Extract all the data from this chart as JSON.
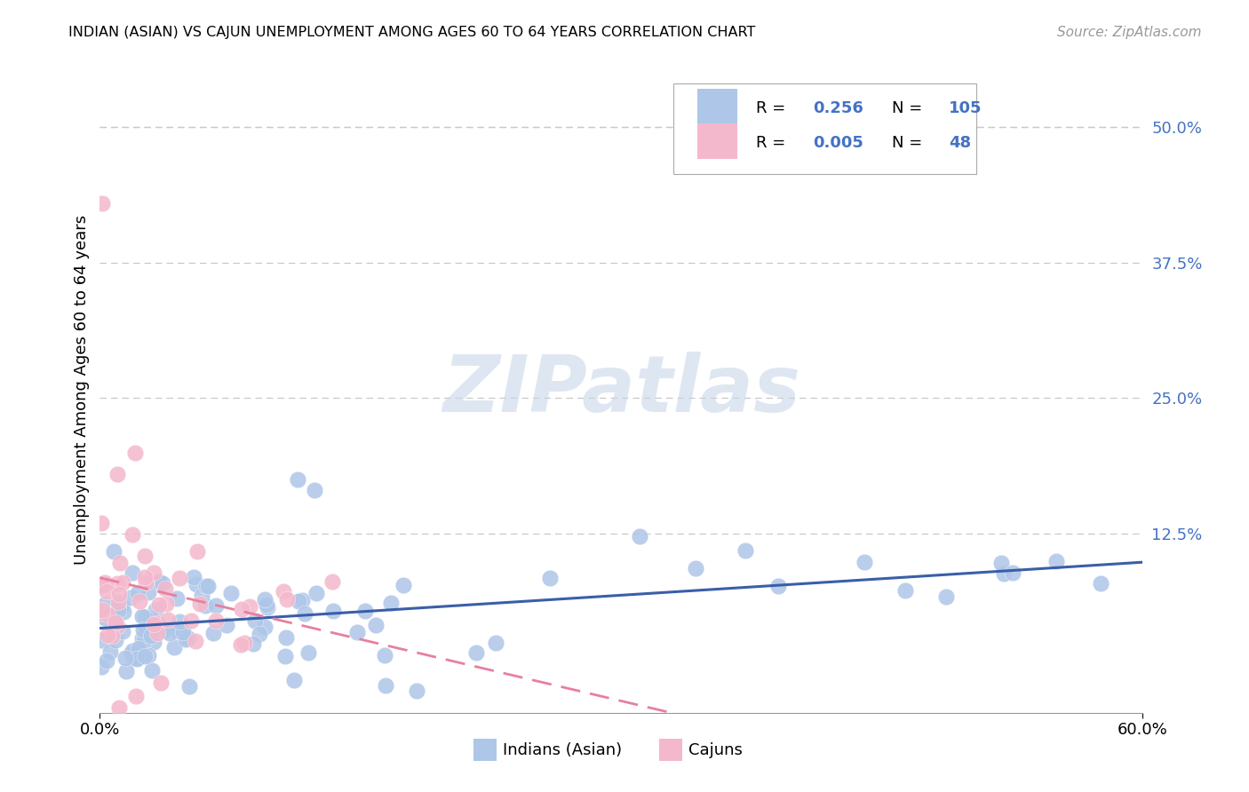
{
  "title": "INDIAN (ASIAN) VS CAJUN UNEMPLOYMENT AMONG AGES 60 TO 64 YEARS CORRELATION CHART",
  "source": "Source: ZipAtlas.com",
  "ylabel": "Unemployment Among Ages 60 to 64 years",
  "right_yticks": [
    "50.0%",
    "37.5%",
    "25.0%",
    "12.5%"
  ],
  "right_ytick_vals": [
    0.5,
    0.375,
    0.25,
    0.125
  ],
  "xmin": 0.0,
  "xmax": 0.6,
  "ymin": -0.04,
  "ymax": 0.555,
  "watermark_text": "ZIPatlas",
  "legend_R1": "0.256",
  "legend_N1": "105",
  "legend_R2": "0.005",
  "legend_N2": "48",
  "color_indian": "#aec6e8",
  "color_cajun": "#f4b8cc",
  "color_indian_line": "#3a5fa8",
  "color_cajun_line": "#e87fa0",
  "color_blue": "#4472c4",
  "color_grid": "#c8c8c8",
  "background_color": "#ffffff",
  "label_indians": "Indians (Asian)",
  "label_cajuns": "Cajuns"
}
